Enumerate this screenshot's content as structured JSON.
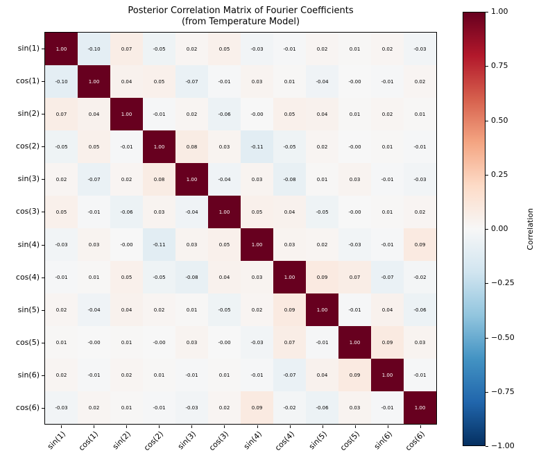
{
  "figure": {
    "title_line1": "Posterior Correlation Matrix of Fourier Coefficients",
    "title_line2": "(from Temperature Model)"
  },
  "chart_data": {
    "type": "heatmap",
    "title": "Posterior Correlation Matrix of Fourier Coefficients (from Temperature Model)",
    "categories": [
      "sin(1)",
      "cos(1)",
      "sin(2)",
      "cos(2)",
      "sin(3)",
      "cos(3)",
      "sin(4)",
      "cos(4)",
      "sin(5)",
      "cos(5)",
      "sin(6)",
      "cos(6)"
    ],
    "matrix": [
      [
        "1.00",
        "-0.10",
        "0.07",
        "-0.05",
        "0.02",
        "0.05",
        "-0.03",
        "-0.01",
        "0.02",
        "0.01",
        "0.02",
        "-0.03"
      ],
      [
        "-0.10",
        "1.00",
        "0.04",
        "0.05",
        "-0.07",
        "-0.01",
        "0.03",
        "0.01",
        "-0.04",
        "-0.00",
        "-0.01",
        "0.02"
      ],
      [
        "0.07",
        "0.04",
        "1.00",
        "-0.01",
        "0.02",
        "-0.06",
        "-0.00",
        "0.05",
        "0.04",
        "0.01",
        "0.02",
        "0.01"
      ],
      [
        "-0.05",
        "0.05",
        "-0.01",
        "1.00",
        "0.08",
        "0.03",
        "-0.11",
        "-0.05",
        "0.02",
        "-0.00",
        "0.01",
        "-0.01"
      ],
      [
        "0.02",
        "-0.07",
        "0.02",
        "0.08",
        "1.00",
        "-0.04",
        "0.03",
        "-0.08",
        "0.01",
        "0.03",
        "-0.01",
        "-0.03"
      ],
      [
        "0.05",
        "-0.01",
        "-0.06",
        "0.03",
        "-0.04",
        "1.00",
        "0.05",
        "0.04",
        "-0.05",
        "-0.00",
        "0.01",
        "0.02"
      ],
      [
        "-0.03",
        "0.03",
        "-0.00",
        "-0.11",
        "0.03",
        "0.05",
        "1.00",
        "0.03",
        "0.02",
        "-0.03",
        "-0.01",
        "0.09"
      ],
      [
        "-0.01",
        "0.01",
        "0.05",
        "-0.05",
        "-0.08",
        "0.04",
        "0.03",
        "1.00",
        "0.09",
        "0.07",
        "-0.07",
        "-0.02"
      ],
      [
        "0.02",
        "-0.04",
        "0.04",
        "0.02",
        "0.01",
        "-0.05",
        "0.02",
        "0.09",
        "1.00",
        "-0.01",
        "0.04",
        "-0.06"
      ],
      [
        "0.01",
        "-0.00",
        "0.01",
        "-0.00",
        "0.03",
        "-0.00",
        "-0.03",
        "0.07",
        "-0.01",
        "1.00",
        "0.09",
        "0.03"
      ],
      [
        "0.02",
        "-0.01",
        "0.02",
        "0.01",
        "-0.01",
        "0.01",
        "-0.01",
        "-0.07",
        "0.04",
        "0.09",
        "1.00",
        "-0.01"
      ],
      [
        "-0.03",
        "0.02",
        "0.01",
        "-0.01",
        "-0.03",
        "0.02",
        "0.09",
        "-0.02",
        "-0.06",
        "0.03",
        "-0.01",
        "1.00"
      ]
    ],
    "vmin": -1,
    "vmax": 1,
    "colormap": "RdBu_r",
    "cmap_anchors": [
      "#053061",
      "#2166ac",
      "#4393c3",
      "#92c5de",
      "#d1e5f0",
      "#f7f7f7",
      "#fddbc7",
      "#f4a582",
      "#d6604d",
      "#b2182b",
      "#67001f"
    ],
    "colorbar": {
      "label": "Correlation",
      "ticks": [
        "1.00",
        "0.75",
        "0.50",
        "0.25",
        "0.00",
        "−0.25",
        "−0.50",
        "−0.75",
        "−1.00"
      ]
    },
    "legend_position": "right-colorbar",
    "grid": false
  },
  "colors": {
    "background": "#ffffff",
    "axis_and_text": "#000000",
    "cell_text_dark": "#000000",
    "cell_text_light": "#ffffff",
    "diagonal": "#67001f"
  }
}
